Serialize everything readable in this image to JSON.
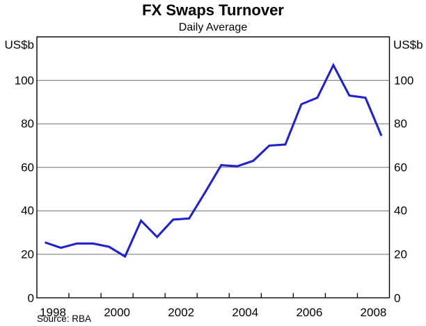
{
  "chart_data": {
    "type": "line",
    "title": "FX Swaps Turnover",
    "subtitle": "Daily Average",
    "y_unit_left": "US$b",
    "y_unit_right": "US$b",
    "source": "Source: RBA",
    "x": [
      1998.25,
      1998.75,
      1999.25,
      1999.75,
      2000.25,
      2000.75,
      2001.25,
      2001.75,
      2002.25,
      2002.75,
      2003.25,
      2003.75,
      2004.25,
      2004.75,
      2005.25,
      2005.75,
      2006.25,
      2006.75,
      2007.25,
      2007.75,
      2008.25,
      2008.75
    ],
    "values": [
      25.5,
      23,
      25,
      25,
      23.5,
      19,
      35.5,
      28,
      36,
      36.5,
      48.5,
      61,
      60.5,
      63,
      70,
      70.5,
      89,
      92,
      107,
      93,
      92,
      74.5
    ],
    "xlim": [
      1998,
      2009
    ],
    "ylim": [
      0,
      120
    ],
    "y_ticks": [
      0,
      20,
      40,
      60,
      80,
      100
    ],
    "x_boundary_tick_years": [
      1999,
      2000,
      2001,
      2002,
      2003,
      2004,
      2005,
      2006,
      2007,
      2008
    ],
    "x_label_years": [
      "1998",
      "2000",
      "2002",
      "2004",
      "2006",
      "2008"
    ],
    "grid": "horizontal",
    "legend": "none",
    "line_color": "#2222CC",
    "grid_color": "#6e6e6e",
    "frame_color": "#000000",
    "text_color": "#000000",
    "background_color": "#FFFFFF"
  }
}
